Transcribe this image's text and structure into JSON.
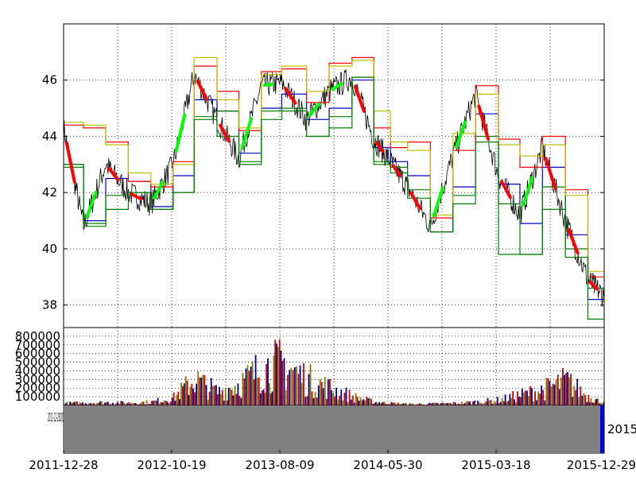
{
  "chart_data": [
    {
      "type": "line",
      "panel": "price",
      "title": "",
      "xlabel": "",
      "ylabel": "",
      "ylim": [
        37.2,
        48.0
      ],
      "xlim": [
        "2011-12-28",
        "2015-12-29"
      ],
      "yticks": [
        "38",
        "40",
        "42",
        "44",
        "46"
      ],
      "grid": true,
      "x": [
        "2011-12-28",
        "2012-02-20",
        "2012-04-20",
        "2012-06-20",
        "2012-08-20",
        "2012-10-19",
        "2012-12-15",
        "2013-02-15",
        "2013-04-15",
        "2013-06-15",
        "2013-08-09",
        "2013-10-15",
        "2013-12-15",
        "2014-02-15",
        "2014-04-15",
        "2014-05-30",
        "2014-07-15",
        "2014-09-15",
        "2014-11-15",
        "2015-01-15",
        "2015-03-18",
        "2015-05-15",
        "2015-07-15",
        "2015-09-15",
        "2015-11-15",
        "2015-12-29"
      ],
      "series": [
        {
          "values": [
            44.3,
            40.8,
            43.0,
            42.0,
            41.6,
            43.0,
            46.2,
            44.6,
            43.2,
            45.8,
            45.9,
            44.6,
            45.6,
            46.1,
            43.9,
            43.1,
            42.2,
            40.8,
            43.3,
            45.5,
            42.6,
            41.2,
            43.6,
            41.0,
            38.9,
            38.3
          ]
        },
        {
          "values": [
            43.0,
            41.0,
            42.5,
            42.4,
            41.5,
            42.6,
            45.3,
            44.9,
            43.4,
            45.0,
            45.5,
            44.6,
            45.0,
            46.0,
            43.6,
            43.1,
            42.6,
            40.6,
            42.2,
            44.8,
            42.3,
            40.9,
            42.9,
            40.5,
            38.2,
            38.1
          ]
        },
        {
          "values": [
            43.0,
            40.9,
            41.9,
            42.0,
            41.4,
            42.0,
            44.7,
            44.9,
            43.0,
            44.9,
            45.0,
            44.0,
            44.7,
            46.1,
            43.1,
            42.9,
            42.1,
            40.6,
            41.9,
            44.0,
            41.6,
            39.8,
            42.2,
            40.0,
            38.6,
            37.6
          ]
        },
        {
          "values": [
            44.4,
            44.3,
            43.8,
            42.4,
            42.2,
            43.1,
            46.5,
            45.6,
            44.2,
            46.3,
            46.4,
            45.2,
            46.6,
            46.8,
            44.3,
            43.6,
            43.8,
            41.1,
            43.5,
            45.8,
            43.9,
            42.9,
            44.0,
            42.1,
            39.0,
            39.0
          ]
        },
        {
          "values": [
            44.5,
            44.4,
            43.7,
            42.7,
            42.3,
            43.0,
            46.8,
            45.3,
            44.3,
            46.2,
            46.5,
            45.6,
            46.5,
            46.7,
            44.9,
            43.8,
            43.5,
            41.2,
            44.1,
            45.5,
            43.7,
            43.3,
            43.7,
            41.9,
            39.2,
            38.9
          ]
        },
        {
          "values": [
            42.9,
            40.8,
            41.4,
            42.0,
            41.4,
            42.0,
            44.6,
            44.0,
            43.1,
            44.6,
            44.9,
            44.0,
            44.3,
            46.1,
            43.0,
            42.7,
            41.8,
            40.6,
            41.6,
            43.8,
            39.8,
            39.8,
            41.4,
            39.7,
            37.5,
            37.5
          ]
        }
      ]
    },
    {
      "type": "bar",
      "panel": "volume",
      "title": "",
      "xlabel": "",
      "ylabel": "",
      "ylim": [
        0,
        900000
      ],
      "yticks": [
        "100000",
        "200000",
        "300000",
        "400000",
        "500000",
        "600000",
        "700000",
        "800000"
      ],
      "grid": true,
      "x": [
        "2011-12-28",
        "2012-02-20",
        "2012-04-20",
        "2012-06-20",
        "2012-08-20",
        "2012-10-19",
        "2012-12-15",
        "2013-02-15",
        "2013-04-15",
        "2013-06-15",
        "2013-08-09",
        "2013-10-15",
        "2013-12-15",
        "2014-02-15",
        "2014-04-15",
        "2014-05-30",
        "2014-07-15",
        "2014-09-15",
        "2014-11-15",
        "2015-01-15",
        "2015-03-18",
        "2015-05-15",
        "2015-07-15",
        "2015-09-15",
        "2015-11-15",
        "2015-12-29"
      ],
      "values": [
        25000,
        30000,
        35000,
        30000,
        40000,
        90000,
        300000,
        150000,
        250000,
        420000,
        480000,
        300000,
        200000,
        100000,
        40000,
        25000,
        15000,
        20000,
        25000,
        40000,
        60000,
        120000,
        180000,
        280000,
        100000,
        20000
      ]
    }
  ],
  "slider": {
    "overlapped_date_labels": "2011-12-282012-02-142012-04-102012-05-292012-07-162012-09-122012-11-062013-01-102013-03-052013-05-082013-07-012013-09-032013-10-242014-01-022014-03-042014-05-272014-07-212014-09-152014-11-072015-01-022015-03-042015-05-042015-06-262015-08-212015-10-152015-12-29",
    "current_date": "2015",
    "position_fraction": 1.0,
    "date_labels": [
      "2011-12-28",
      "2012-10-19",
      "2013-08-09",
      "2014-05-30",
      "2015-03-18",
      "2015-12-29"
    ]
  },
  "colors": {
    "close": "#000000",
    "blue_line": "#0000c8",
    "green_line": "#008000",
    "red_line": "#ff0000",
    "yellow_line": "#bfbf00",
    "green_marker": "#00ff00",
    "red_marker": "#ff0000",
    "slider_fill": "#808080",
    "slider_handle": "#0000dd",
    "vol_bar_red": "#c80000",
    "vol_bar_blue": "#000090",
    "vol_bar_olive": "#808000"
  }
}
